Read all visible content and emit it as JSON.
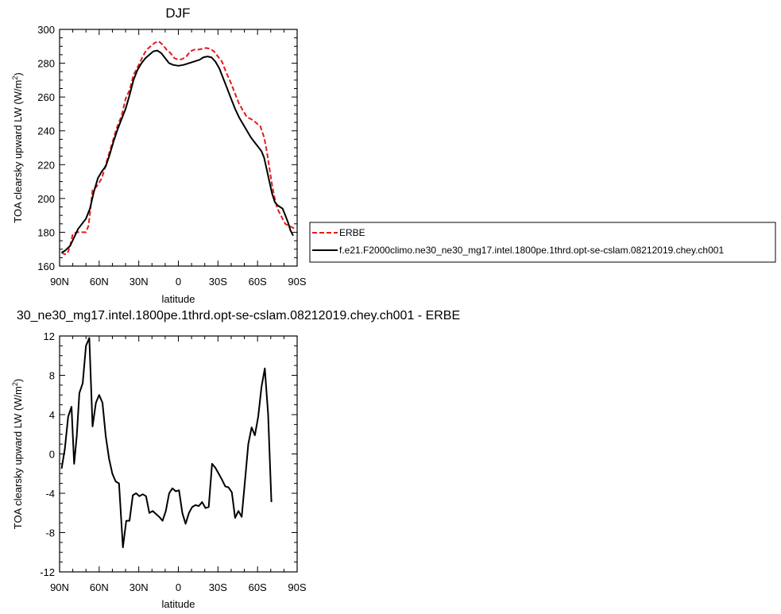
{
  "legend": {
    "entries": [
      {
        "label": "ERBE",
        "color": "#e41a1c",
        "dash": true
      },
      {
        "label": "f.e21.F2000climo.ne30_ne30_mg17.intel.1800pe.1thrd.opt-se-cslam.08212019.chey.ch001",
        "color": "#000000",
        "dash": false
      }
    ]
  },
  "chart_data": [
    {
      "type": "line",
      "title": "DJF",
      "xlabel": "latitude",
      "ylabel": "TOA clearsky upward LW (W/m",
      "ylabel_sup": "2",
      "ylabel_tail": ")",
      "xlim": [
        90,
        -90
      ],
      "ylim": [
        160,
        300
      ],
      "xticks": [
        90,
        60,
        30,
        0,
        -30,
        -60,
        -90
      ],
      "xtick_labels": [
        "90N",
        "60N",
        "30N",
        "0",
        "30S",
        "60S",
        "90S"
      ],
      "yticks": [
        160,
        180,
        200,
        220,
        240,
        260,
        280,
        300
      ],
      "ytick_labels": [
        "160",
        "180",
        "200",
        "220",
        "240",
        "260",
        "280",
        "300"
      ],
      "series": [
        {
          "name": "ERBE",
          "color": "#e41a1c",
          "dash": true,
          "points": [
            [
              88.5,
              168
            ],
            [
              86,
              167
            ],
            [
              84,
              167.5
            ],
            [
              82,
              172
            ],
            [
              80,
              179
            ],
            [
              77,
              180
            ],
            [
              73,
              180
            ],
            [
              70,
              180
            ],
            [
              68,
              184
            ],
            [
              65,
              205
            ],
            [
              62,
              207
            ],
            [
              58,
              212
            ],
            [
              55,
              220
            ],
            [
              52,
              228
            ],
            [
              50,
              233
            ],
            [
              47,
              241
            ],
            [
              43,
              249
            ],
            [
              40,
              259
            ],
            [
              37,
              264
            ],
            [
              34,
              273
            ],
            [
              30,
              279
            ],
            [
              27,
              284
            ],
            [
              24,
              288
            ],
            [
              21,
              290
            ],
            [
              18,
              292
            ],
            [
              15,
              293
            ],
            [
              12,
              291
            ],
            [
              9,
              288
            ],
            [
              6,
              286
            ],
            [
              3,
              283
            ],
            [
              0,
              282
            ],
            [
              -3,
              282.5
            ],
            [
              -6,
              284
            ],
            [
              -9,
              287
            ],
            [
              -12,
              288
            ],
            [
              -15,
              288
            ],
            [
              -18,
              288.5
            ],
            [
              -21,
              289
            ],
            [
              -24,
              288.5
            ],
            [
              -27,
              287
            ],
            [
              -30,
              284
            ],
            [
              -33,
              281
            ],
            [
              -36,
              275
            ],
            [
              -40,
              268
            ],
            [
              -43,
              262
            ],
            [
              -46,
              256
            ],
            [
              -49,
              252
            ],
            [
              -52,
              248
            ],
            [
              -55,
              247
            ],
            [
              -57,
              246
            ],
            [
              -60,
              244
            ],
            [
              -62,
              243
            ],
            [
              -65,
              236
            ],
            [
              -67,
              228
            ],
            [
              -69,
              218
            ],
            [
              -71,
              208
            ],
            [
              -73,
              200
            ],
            [
              -75,
              194
            ],
            [
              -77,
              191
            ],
            [
              -79,
              188
            ],
            [
              -81,
              185
            ],
            [
              -83,
              184
            ],
            [
              -86,
              183
            ],
            [
              -88.5,
              182
            ]
          ]
        },
        {
          "name": "f.e21.F2000climo.ne30_ne30_mg17.intel.1800pe.1thrd.opt-se-cslam.08212019.chey.ch001",
          "color": "#000000",
          "dash": false,
          "points": [
            [
              88.5,
              168
            ],
            [
              86,
              169
            ],
            [
              82,
              172
            ],
            [
              79,
              177
            ],
            [
              76,
              182
            ],
            [
              73,
              185
            ],
            [
              70,
              188
            ],
            [
              67,
              194
            ],
            [
              64,
              204
            ],
            [
              61,
              212
            ],
            [
              58,
              216
            ],
            [
              55,
              219
            ],
            [
              52,
              226
            ],
            [
              49,
              234
            ],
            [
              46,
              241
            ],
            [
              43,
              247
            ],
            [
              40,
              253
            ],
            [
              37,
              261
            ],
            [
              34,
              270
            ],
            [
              31,
              276
            ],
            [
              28,
              280
            ],
            [
              25,
              283
            ],
            [
              22,
              285
            ],
            [
              19,
              287
            ],
            [
              16,
              287.5
            ],
            [
              13,
              286
            ],
            [
              10,
              283
            ],
            [
              7,
              280
            ],
            [
              4,
              279
            ],
            [
              0,
              278.5
            ],
            [
              -4,
              279
            ],
            [
              -8,
              280
            ],
            [
              -12,
              281
            ],
            [
              -16,
              282
            ],
            [
              -19,
              283.5
            ],
            [
              -22,
              284
            ],
            [
              -25,
              283.5
            ],
            [
              -28,
              281
            ],
            [
              -31,
              277
            ],
            [
              -34,
              271
            ],
            [
              -37,
              265
            ],
            [
              -40,
              259
            ],
            [
              -43,
              253
            ],
            [
              -46,
              248
            ],
            [
              -49,
              244
            ],
            [
              -52,
              240
            ],
            [
              -55,
              236
            ],
            [
              -58,
              233
            ],
            [
              -61,
              230
            ],
            [
              -63,
              228
            ],
            [
              -65,
              224
            ],
            [
              -67,
              217
            ],
            [
              -69,
              210
            ],
            [
              -71,
              203
            ],
            [
              -73,
              198
            ],
            [
              -75,
              196
            ],
            [
              -77,
              195
            ],
            [
              -79,
              194
            ],
            [
              -81,
              190
            ],
            [
              -83,
              186
            ],
            [
              -85,
              181
            ],
            [
              -87,
              178
            ]
          ]
        }
      ]
    },
    {
      "type": "line",
      "title": "30_ne30_mg17.intel.1800pe.1thrd.opt-se-cslam.08212019.chey.ch001 - ERBE",
      "xlabel": "latitude",
      "ylabel": "TOA clearsky upward LW (W/m",
      "ylabel_sup": "2",
      "ylabel_tail": ")",
      "xlim": [
        90,
        -90
      ],
      "ylim": [
        -12,
        12
      ],
      "xticks": [
        90,
        60,
        30,
        0,
        -30,
        -60,
        -90
      ],
      "xtick_labels": [
        "90N",
        "60N",
        "30N",
        "0",
        "30S",
        "60S",
        "90S"
      ],
      "yticks": [
        -12,
        -8,
        -4,
        0,
        4,
        8,
        12
      ],
      "ytick_labels": [
        "-12",
        "-8",
        "-4",
        "0",
        "4",
        "8",
        "12"
      ],
      "series": [
        {
          "name": "",
          "color": "#000000",
          "dash": false,
          "points": [
            [
              88.5,
              -1.5
            ],
            [
              86,
              0.5
            ],
            [
              83.5,
              3.8
            ],
            [
              81,
              4.8
            ],
            [
              79,
              -1
            ],
            [
              77,
              1.8
            ],
            [
              75,
              6.2
            ],
            [
              72.5,
              7.2
            ],
            [
              70,
              11
            ],
            [
              67.5,
              11.8
            ],
            [
              65,
              2.8
            ],
            [
              62.5,
              5.2
            ],
            [
              60,
              6
            ],
            [
              57.5,
              5.2
            ],
            [
              55,
              1.8
            ],
            [
              52.5,
              -0.5
            ],
            [
              50,
              -2
            ],
            [
              47.5,
              -2.8
            ],
            [
              45,
              -3
            ],
            [
              42,
              -9.5
            ],
            [
              39.5,
              -6.8
            ],
            [
              37,
              -6.8
            ],
            [
              34.5,
              -4.2
            ],
            [
              32,
              -4
            ],
            [
              29.5,
              -4.3
            ],
            [
              27,
              -4.1
            ],
            [
              24.5,
              -4.3
            ],
            [
              22,
              -6
            ],
            [
              19.5,
              -5.8
            ],
            [
              17,
              -6.1
            ],
            [
              14.5,
              -6.4
            ],
            [
              12,
              -6.8
            ],
            [
              9.5,
              -5.8
            ],
            [
              7,
              -4
            ],
            [
              4.5,
              -3.5
            ],
            [
              2,
              -3.8
            ],
            [
              -0.5,
              -3.7
            ],
            [
              -3,
              -6
            ],
            [
              -5.5,
              -7.1
            ],
            [
              -8,
              -6
            ],
            [
              -10.5,
              -5.4
            ],
            [
              -13,
              -5.2
            ],
            [
              -15.5,
              -5.3
            ],
            [
              -18,
              -4.9
            ],
            [
              -20.5,
              -5.5
            ],
            [
              -23,
              -5.4
            ],
            [
              -25.5,
              -1
            ],
            [
              -28,
              -1.4
            ],
            [
              -30.5,
              -2
            ],
            [
              -33,
              -2.6
            ],
            [
              -35.5,
              -3.3
            ],
            [
              -38,
              -3.4
            ],
            [
              -40.5,
              -3.9
            ],
            [
              -43,
              -6.5
            ],
            [
              -45.5,
              -5.8
            ],
            [
              -48,
              -6.4
            ],
            [
              -50.5,
              -2.7
            ],
            [
              -53,
              1
            ],
            [
              -55.5,
              2.7
            ],
            [
              -58,
              1.9
            ],
            [
              -60.5,
              3.8
            ],
            [
              -63,
              6.8
            ],
            [
              -65.5,
              8.7
            ],
            [
              -68,
              4
            ],
            [
              -70.5,
              -4.9
            ]
          ]
        }
      ]
    }
  ]
}
